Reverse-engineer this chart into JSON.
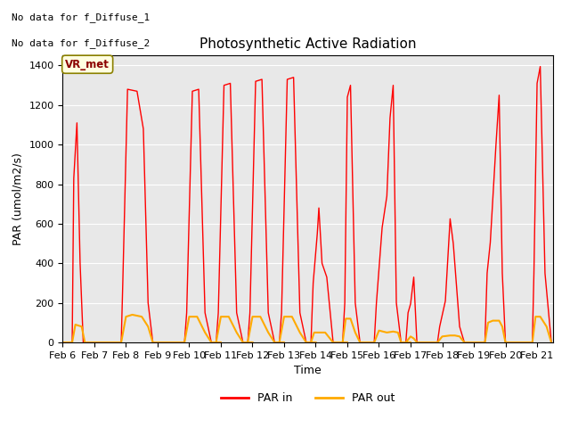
{
  "title": "Photosynthetic Active Radiation",
  "xlabel": "Time",
  "ylabel": "PAR (umol/m2/s)",
  "ylim": [
    0,
    1450
  ],
  "background_color": "#e8e8e8",
  "note_line1": "No data for f_Diffuse_1",
  "note_line2": "No data for f_Diffuse_2",
  "legend_label1": "PAR in",
  "legend_label2": "PAR out",
  "color_par_in": "#ff0000",
  "color_par_out": "#ffaa00",
  "site_label": "VR_met",
  "xtick_labels": [
    "Feb 6",
    "Feb 7",
    "Feb 8",
    "Feb 9",
    "Feb 10",
    "Feb 11",
    "Feb 12",
    "Feb 13",
    "Feb 14",
    "Feb 15",
    "Feb 16",
    "Feb 17",
    "Feb 18",
    "Feb 19",
    "Feb 20",
    "Feb 21"
  ],
  "par_in_peaks": [
    [
      0.0,
      0
    ],
    [
      0.3,
      0
    ],
    [
      0.35,
      830
    ],
    [
      0.45,
      1110
    ],
    [
      0.55,
      400
    ],
    [
      0.65,
      0
    ],
    [
      1.0,
      0
    ],
    [
      1.85,
      0
    ],
    [
      1.9,
      300
    ],
    [
      2.05,
      1280
    ],
    [
      2.35,
      1270
    ],
    [
      2.55,
      1080
    ],
    [
      2.7,
      200
    ],
    [
      2.85,
      0
    ],
    [
      3.0,
      0
    ],
    [
      2.85,
      0
    ],
    [
      3.0,
      0
    ],
    [
      3.85,
      0
    ],
    [
      3.92,
      150
    ],
    [
      4.1,
      1270
    ],
    [
      4.3,
      1280
    ],
    [
      4.5,
      150
    ],
    [
      4.7,
      0
    ],
    [
      5.0,
      0
    ],
    [
      4.85,
      0
    ],
    [
      4.92,
      150
    ],
    [
      5.1,
      1300
    ],
    [
      5.3,
      1310
    ],
    [
      5.5,
      150
    ],
    [
      5.7,
      0
    ],
    [
      6.0,
      0
    ],
    [
      5.85,
      0
    ],
    [
      5.92,
      150
    ],
    [
      6.1,
      1320
    ],
    [
      6.3,
      1330
    ],
    [
      6.5,
      150
    ],
    [
      6.7,
      0
    ],
    [
      7.0,
      0
    ],
    [
      6.85,
      0
    ],
    [
      6.92,
      150
    ],
    [
      7.1,
      1330
    ],
    [
      7.3,
      1340
    ],
    [
      7.5,
      150
    ],
    [
      7.7,
      0
    ],
    [
      8.0,
      0
    ],
    [
      7.85,
      0
    ],
    [
      7.92,
      300
    ],
    [
      8.05,
      550
    ],
    [
      8.1,
      680
    ],
    [
      8.2,
      400
    ],
    [
      8.35,
      330
    ],
    [
      8.55,
      0
    ],
    [
      9.0,
      0
    ],
    [
      8.85,
      0
    ],
    [
      8.92,
      200
    ],
    [
      9.0,
      1240
    ],
    [
      9.1,
      1300
    ],
    [
      9.25,
      200
    ],
    [
      9.4,
      0
    ],
    [
      9.5,
      0
    ],
    [
      9.85,
      0
    ],
    [
      9.92,
      200
    ],
    [
      10.1,
      580
    ],
    [
      10.25,
      740
    ],
    [
      10.35,
      1135
    ],
    [
      10.45,
      1300
    ],
    [
      10.55,
      200
    ],
    [
      10.7,
      0
    ],
    [
      11.0,
      0
    ],
    [
      10.85,
      0
    ],
    [
      10.92,
      150
    ],
    [
      11.0,
      195
    ],
    [
      11.1,
      330
    ],
    [
      11.2,
      0
    ],
    [
      11.5,
      0
    ],
    [
      11.85,
      0
    ],
    [
      11.92,
      80
    ],
    [
      12.1,
      210
    ],
    [
      12.25,
      625
    ],
    [
      12.35,
      500
    ],
    [
      12.55,
      80
    ],
    [
      12.7,
      0
    ],
    [
      13.0,
      0
    ],
    [
      13.35,
      0
    ],
    [
      13.42,
      350
    ],
    [
      13.52,
      505
    ],
    [
      13.7,
      1000
    ],
    [
      13.8,
      1250
    ],
    [
      13.9,
      350
    ],
    [
      14.0,
      0
    ],
    [
      14.2,
      0
    ],
    [
      14.85,
      0
    ],
    [
      14.9,
      350
    ],
    [
      15.0,
      1310
    ],
    [
      15.1,
      1395
    ],
    [
      15.25,
      350
    ],
    [
      15.45,
      0
    ]
  ],
  "par_out_peaks": [
    [
      0.0,
      0
    ],
    [
      0.3,
      0
    ],
    [
      0.4,
      90
    ],
    [
      0.6,
      80
    ],
    [
      0.7,
      0
    ],
    [
      1.0,
      0
    ],
    [
      1.85,
      0
    ],
    [
      2.0,
      130
    ],
    [
      2.2,
      140
    ],
    [
      2.5,
      130
    ],
    [
      2.7,
      80
    ],
    [
      2.85,
      0
    ],
    [
      3.0,
      0
    ],
    [
      3.85,
      0
    ],
    [
      4.0,
      130
    ],
    [
      4.25,
      130
    ],
    [
      4.5,
      50
    ],
    [
      4.7,
      0
    ],
    [
      5.0,
      0
    ],
    [
      4.85,
      0
    ],
    [
      5.0,
      130
    ],
    [
      5.25,
      130
    ],
    [
      5.5,
      50
    ],
    [
      5.7,
      0
    ],
    [
      6.0,
      0
    ],
    [
      5.85,
      0
    ],
    [
      6.0,
      130
    ],
    [
      6.25,
      130
    ],
    [
      6.5,
      50
    ],
    [
      6.7,
      0
    ],
    [
      7.0,
      0
    ],
    [
      6.85,
      0
    ],
    [
      7.0,
      130
    ],
    [
      7.25,
      130
    ],
    [
      7.5,
      50
    ],
    [
      7.7,
      0
    ],
    [
      8.0,
      0
    ],
    [
      7.85,
      0
    ],
    [
      7.95,
      50
    ],
    [
      8.1,
      50
    ],
    [
      8.3,
      50
    ],
    [
      8.55,
      0
    ],
    [
      9.0,
      0
    ],
    [
      8.85,
      0
    ],
    [
      8.95,
      120
    ],
    [
      9.1,
      120
    ],
    [
      9.25,
      50
    ],
    [
      9.4,
      0
    ],
    [
      9.5,
      0
    ],
    [
      9.85,
      0
    ],
    [
      10.0,
      60
    ],
    [
      10.25,
      50
    ],
    [
      10.45,
      55
    ],
    [
      10.6,
      50
    ],
    [
      10.7,
      0
    ],
    [
      11.0,
      0
    ],
    [
      10.85,
      0
    ],
    [
      11.0,
      30
    ],
    [
      11.1,
      20
    ],
    [
      11.2,
      0
    ],
    [
      11.5,
      0
    ],
    [
      11.85,
      0
    ],
    [
      12.0,
      30
    ],
    [
      12.25,
      35
    ],
    [
      12.4,
      35
    ],
    [
      12.55,
      30
    ],
    [
      12.7,
      0
    ],
    [
      13.0,
      0
    ],
    [
      13.35,
      0
    ],
    [
      13.45,
      100
    ],
    [
      13.6,
      110
    ],
    [
      13.8,
      110
    ],
    [
      13.9,
      80
    ],
    [
      14.0,
      0
    ],
    [
      14.2,
      0
    ],
    [
      14.85,
      0
    ],
    [
      14.95,
      130
    ],
    [
      15.1,
      130
    ],
    [
      15.3,
      80
    ],
    [
      15.45,
      0
    ]
  ],
  "xlim": [
    0,
    15.5
  ],
  "tick_positions": [
    0,
    1,
    2,
    3,
    4,
    5,
    6,
    7,
    8,
    9,
    10,
    11,
    12,
    13,
    14,
    15
  ]
}
